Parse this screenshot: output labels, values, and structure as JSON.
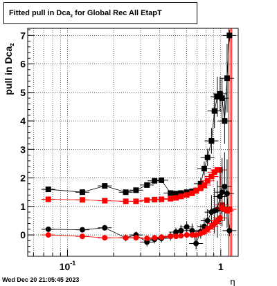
{
  "title": {
    "main": "Fitted pull in Dca",
    "sub": "z",
    "rest": " for Global Rec All EtapT"
  },
  "ylabel": {
    "main": "pull in Dca",
    "sub": "z"
  },
  "footer": "Wed Dec 20 21:05:45 2023",
  "colors": {
    "black": "#000000",
    "red": "#ff0000",
    "grid": "#000000"
  },
  "chart_data": {
    "type": "scatter",
    "xscale": "log",
    "xlim": [
      0.055,
      1.3
    ],
    "ylim": [
      -0.75,
      7.25
    ],
    "grid": true,
    "xlabel": "η",
    "xticks": [
      {
        "value": 0.1,
        "base": "10",
        "exp": "-1"
      },
      {
        "value": 1,
        "base": "1",
        "exp": ""
      }
    ],
    "yticks": [
      0,
      1,
      2,
      3,
      4,
      5,
      6,
      7
    ],
    "series": [
      {
        "color": "black",
        "marker": "square",
        "x": [
          0.075,
          0.125,
          0.175,
          0.24,
          0.28,
          0.33,
          0.37,
          0.41,
          0.47,
          0.51,
          0.55,
          0.6,
          0.65,
          0.69,
          0.74,
          0.78,
          0.82,
          0.87,
          0.91,
          0.95,
          0.99,
          1.02,
          1.06,
          1.1,
          1.14
        ],
        "y": [
          1.6,
          1.5,
          1.72,
          1.5,
          1.57,
          1.75,
          1.9,
          1.92,
          1.47,
          1.45,
          1.47,
          1.5,
          1.53,
          1.56,
          1.8,
          2.33,
          2.72,
          3.3,
          4.35,
          4.85,
          4.95,
          4.8,
          4.0,
          5.5,
          7.0
        ],
        "err": [
          0.05,
          0.05,
          0.07,
          0.07,
          0.07,
          0.08,
          0.1,
          0.1,
          0.08,
          0.08,
          0.08,
          0.08,
          0.1,
          0.1,
          0.2,
          0.25,
          0.3,
          0.45,
          0.6,
          0.7,
          0.6,
          0.7,
          0.8,
          1.2,
          0.2
        ]
      },
      {
        "color": "red",
        "marker": "square",
        "x": [
          0.075,
          0.125,
          0.175,
          0.24,
          0.28,
          0.33,
          0.37,
          0.41,
          0.47,
          0.51,
          0.55,
          0.6,
          0.65,
          0.69,
          0.74,
          0.78,
          0.82,
          0.87,
          0.91,
          0.95,
          0.99,
          1.02,
          1.06,
          1.1,
          1.14
        ],
        "y": [
          1.25,
          1.23,
          1.2,
          1.18,
          1.18,
          1.22,
          1.24,
          1.25,
          1.27,
          1.3,
          1.35,
          1.4,
          1.46,
          1.55,
          1.65,
          1.75,
          1.9,
          2.05,
          2.2,
          2.28,
          2.28,
          1.05,
          0.9,
          0.85,
          0.9
        ],
        "err": [
          0.03,
          0.03,
          0.03,
          0.03,
          0.03,
          0.03,
          0.03,
          0.03,
          0.03,
          0.03,
          0.03,
          0.03,
          0.04,
          0.04,
          0.04,
          0.05,
          0.05,
          0.06,
          0.06,
          0.07,
          0.07,
          0.08,
          0.08,
          0.1,
          0.1
        ]
      },
      {
        "color": "black",
        "marker": "circle",
        "x": [
          0.075,
          0.125,
          0.175,
          0.24,
          0.28,
          0.33,
          0.37,
          0.41,
          0.47,
          0.51,
          0.55,
          0.6,
          0.65,
          0.69,
          0.74,
          0.78,
          0.82,
          0.87,
          0.91,
          0.95,
          0.99,
          1.02,
          1.06,
          1.1,
          1.14
        ],
        "y": [
          0.2,
          0.18,
          0.25,
          -0.1,
          0.0,
          -0.25,
          -0.15,
          -0.12,
          -0.05,
          0.1,
          0.15,
          0.28,
          0.15,
          -0.3,
          0.12,
          0.3,
          0.5,
          0.8,
          0.85,
          0.9,
          1.35,
          1.5,
          1.7,
          1.45,
          0.15
        ],
        "err": [
          0.08,
          0.08,
          0.1,
          0.12,
          0.12,
          0.15,
          0.15,
          0.15,
          0.15,
          0.15,
          0.2,
          0.2,
          0.25,
          0.2,
          0.25,
          0.3,
          0.4,
          0.6,
          0.8,
          1.0,
          1.0,
          1.2,
          1.2,
          1.2,
          0.2
        ]
      },
      {
        "color": "red",
        "marker": "circle",
        "x": [
          0.075,
          0.125,
          0.175,
          0.24,
          0.28,
          0.33,
          0.37,
          0.41,
          0.47,
          0.51,
          0.55,
          0.6,
          0.65,
          0.69,
          0.74,
          0.78,
          0.82,
          0.87,
          0.91,
          0.95,
          0.99,
          1.02,
          1.06,
          1.1,
          1.14
        ],
        "y": [
          0.0,
          -0.05,
          -0.1,
          -0.1,
          -0.1,
          -0.12,
          -0.1,
          -0.08,
          -0.05,
          -0.05,
          -0.03,
          0.0,
          0.0,
          0.0,
          0.05,
          0.1,
          0.2,
          0.3,
          0.4,
          0.5,
          0.6,
          0.95,
          0.9,
          0.85,
          0.9
        ],
        "err": [
          0.02,
          0.02,
          0.02,
          0.02,
          0.02,
          0.02,
          0.02,
          0.02,
          0.02,
          0.02,
          0.02,
          0.02,
          0.03,
          0.03,
          0.03,
          0.03,
          0.04,
          0.04,
          0.05,
          0.05,
          0.06,
          0.06,
          0.06,
          0.08,
          0.08
        ]
      }
    ]
  }
}
